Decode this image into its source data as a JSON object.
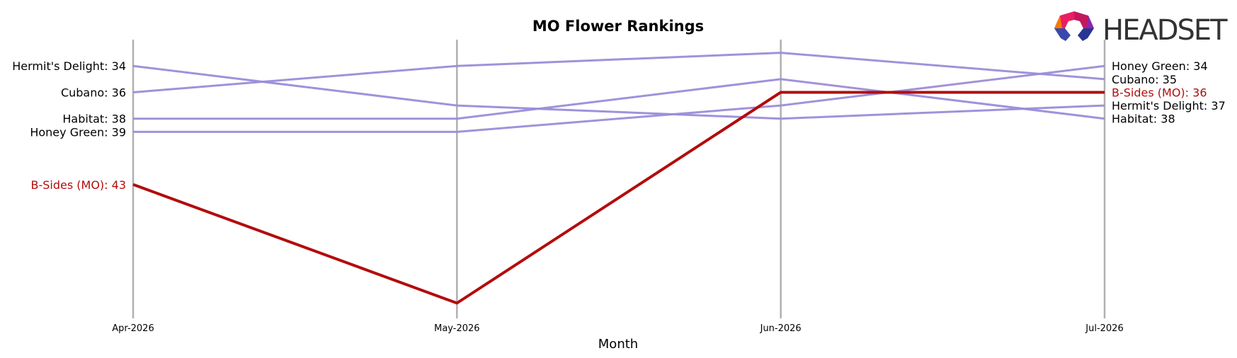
{
  "logo": {
    "text": "HEADSET"
  },
  "colors": {
    "highlight": "#b30c0c",
    "other": "#9b8cd9",
    "grid": "#b0b0b0",
    "text": "#000000"
  },
  "chart_data": {
    "type": "line",
    "title": "MO Flower Rankings",
    "xlabel": "Month",
    "ylabel": "",
    "categories": [
      "Apr-2026",
      "May-2026",
      "Jun-2026",
      "Jul-2026"
    ],
    "y_inverted": true,
    "ylim": [
      32,
      53
    ],
    "grid": "vertical",
    "series": [
      {
        "name": "B-Sides (MO)",
        "values": [
          43,
          52,
          36,
          36
        ],
        "highlight": true,
        "start_label": "B-Sides (MO): 43",
        "end_label": "B-Sides (MO): 36"
      },
      {
        "name": "Hermit's Delight",
        "values": [
          34,
          37,
          38,
          37
        ],
        "highlight": false,
        "start_label": "Hermit's Delight: 34",
        "end_label": "Hermit's Delight: 37"
      },
      {
        "name": "Cubano",
        "values": [
          36,
          34,
          33,
          35
        ],
        "highlight": false,
        "start_label": "Cubano: 36",
        "end_label": "Cubano: 35"
      },
      {
        "name": "Habitat",
        "values": [
          38,
          38,
          35,
          38
        ],
        "highlight": false,
        "start_label": "Habitat: 38",
        "end_label": "Habitat: 38"
      },
      {
        "name": "Honey Green",
        "values": [
          39,
          39,
          37,
          34
        ],
        "highlight": false,
        "start_label": "Honey Green: 39",
        "end_label": "Honey Green: 34"
      }
    ]
  }
}
